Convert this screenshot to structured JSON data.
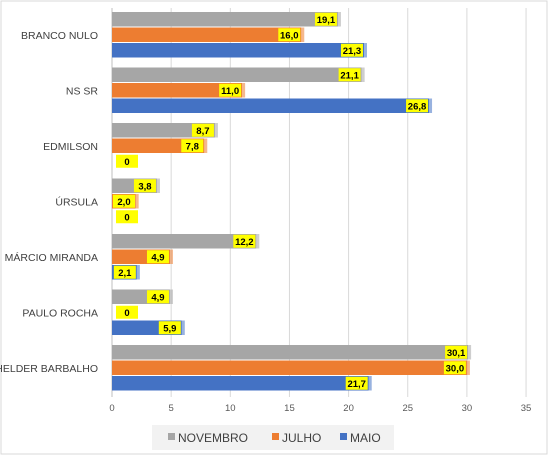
{
  "chart_data": {
    "type": "bar",
    "orientation": "horizontal",
    "categories": [
      "BRANCO NULO",
      "NS SR",
      "EDMILSON",
      "ÚRSULA",
      "MÁRCIO MIRANDA",
      "PAULO ROCHA",
      "HELDER BARBALHO"
    ],
    "series": [
      {
        "name": "NOVEMBRO",
        "color": "#a6a6a6",
        "values": [
          19.1,
          21.1,
          8.7,
          3.8,
          12.2,
          4.9,
          30.1
        ]
      },
      {
        "name": "JULHO",
        "color": "#ed7d31",
        "values": [
          16.0,
          11.0,
          7.8,
          2.0,
          4.9,
          0,
          30.0
        ]
      },
      {
        "name": "MAIO",
        "color": "#4472c4",
        "values": [
          21.3,
          26.8,
          0,
          0,
          2.1,
          5.9,
          21.7
        ]
      }
    ],
    "data_labels": [
      [
        "19,1",
        "21,1",
        "8,7",
        "3,8",
        "12,2",
        "4,9",
        "30,1"
      ],
      [
        "16,0",
        "11,0",
        "7,8",
        "2,0",
        "4,9",
        "0",
        "30,0"
      ],
      [
        "21,3",
        "26,8",
        "0",
        "0",
        "2,1",
        "5,9",
        "21,7"
      ]
    ],
    "xlim": [
      0,
      35
    ],
    "xticks": [
      "0",
      "5",
      "10",
      "15",
      "20",
      "25",
      "30",
      "35"
    ],
    "grid": true,
    "legend_position": "bottom",
    "label_bg": "#ffff00"
  }
}
